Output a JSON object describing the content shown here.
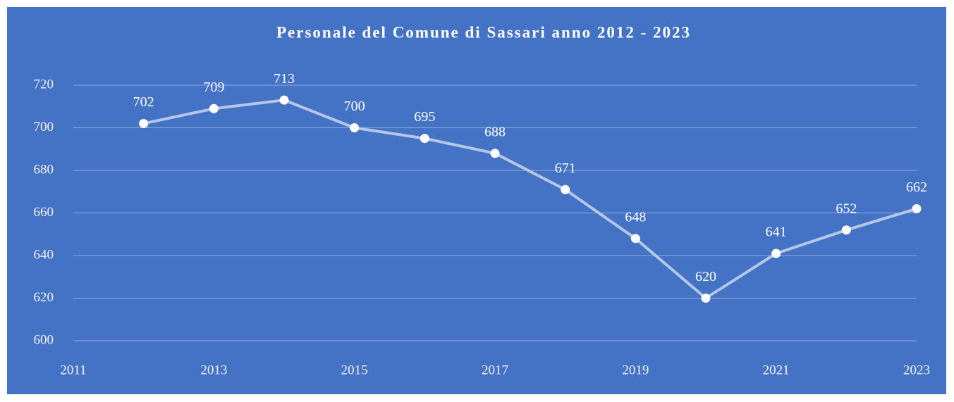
{
  "chart_data": {
    "type": "line",
    "title": "Personale del Comune di Sassari anno 2012 - 2023",
    "x": [
      2012,
      2013,
      2014,
      2015,
      2016,
      2017,
      2018,
      2019,
      2020,
      2021,
      2022,
      2023
    ],
    "values": [
      702,
      709,
      713,
      700,
      695,
      688,
      671,
      648,
      620,
      641,
      652,
      662
    ],
    "color": "#b4c7e7",
    "marker_color": "#ffffff",
    "background": "#4472c4",
    "xlim": [
      2011,
      2023
    ],
    "xticks": [
      2011,
      2013,
      2015,
      2017,
      2019,
      2021,
      2023
    ],
    "ylim": [
      600,
      720
    ],
    "yticks": [
      600,
      620,
      640,
      660,
      680,
      700,
      720
    ],
    "grid": true
  }
}
